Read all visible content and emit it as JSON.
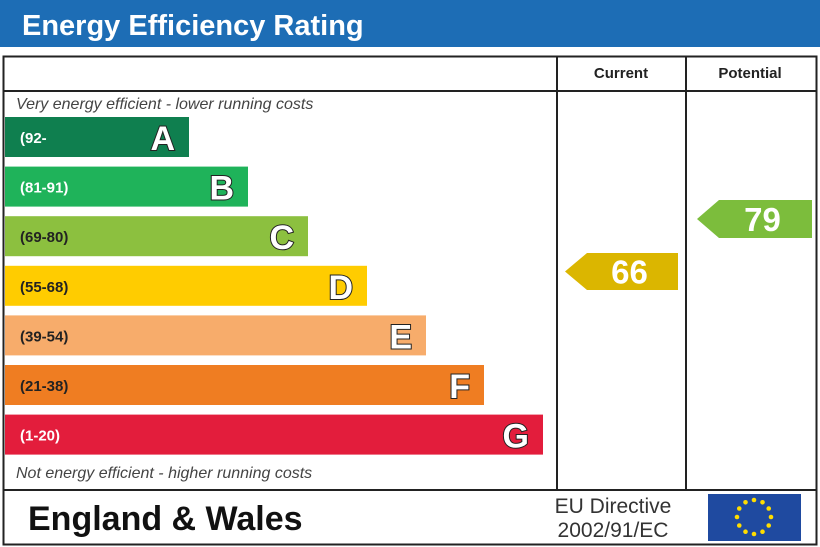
{
  "title": "Energy Efficiency Rating",
  "columns": {
    "current": "Current",
    "potential": "Potential"
  },
  "top_note": "Very energy efficient - lower running costs",
  "bottom_note": "Not energy efficient - higher running costs",
  "footer": {
    "region": "England & Wales",
    "directive_line1": "EU Directive",
    "directive_line2": "2002/91/EC",
    "flag": "eu-flag-icon"
  },
  "colors": {
    "header": "#1d6db5"
  },
  "chart_data": {
    "type": "bar",
    "bands": [
      {
        "letter": "A",
        "range": "(92-",
        "color": "#0f7f4f",
        "text_color": "#ffffff"
      },
      {
        "letter": "B",
        "range": "(81-91)",
        "color": "#1fb35a",
        "text_color": "#ffffff"
      },
      {
        "letter": "C",
        "range": "(69-80)",
        "color": "#8cc03f",
        "text_color": "#222222"
      },
      {
        "letter": "D",
        "range": "(55-68)",
        "color": "#ffcc00",
        "text_color": "#222222"
      },
      {
        "letter": "E",
        "range": "(39-54)",
        "color": "#f7ac6b",
        "text_color": "#222222"
      },
      {
        "letter": "F",
        "range": "(21-38)",
        "color": "#ef7d22",
        "text_color": "#222222"
      },
      {
        "letter": "G",
        "range": "(1-20)",
        "color": "#e31d3c",
        "text_color": "#ffffff"
      }
    ],
    "current": {
      "value": 66,
      "band": "D",
      "color": "#dbb600"
    },
    "potential": {
      "value": 79,
      "band": "C",
      "color": "#7cbd3c"
    }
  }
}
